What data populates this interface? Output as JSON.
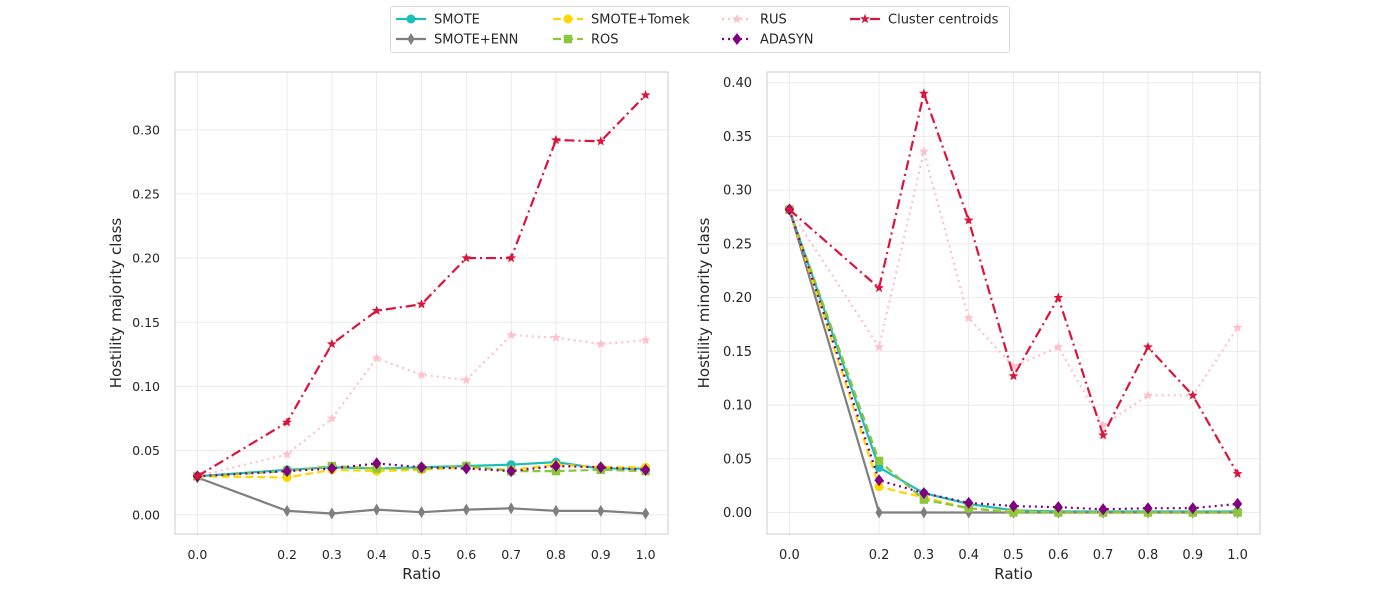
{
  "chart_data": [
    {
      "type": "line",
      "xlabel": "Ratio",
      "ylabel": "Hostility majority class",
      "x": [
        0.0,
        0.2,
        0.3,
        0.4,
        0.5,
        0.6,
        0.7,
        0.8,
        0.9,
        1.0
      ],
      "x_tick_labels": [
        "0.0",
        "0.2",
        "0.3",
        "0.4",
        "0.5",
        "0.6",
        "0.7",
        "0.8",
        "0.9",
        "1.0"
      ],
      "ylim": [
        -0.015,
        0.345
      ],
      "y_ticks": [
        0.0,
        0.05,
        0.1,
        0.15,
        0.2,
        0.25,
        0.3
      ],
      "y_tick_labels": [
        "0.00",
        "0.05",
        "0.10",
        "0.15",
        "0.20",
        "0.25",
        "0.30"
      ],
      "grid": true,
      "series": [
        {
          "name": "SMOTE",
          "values": [
            0.03,
            0.035,
            0.037,
            0.036,
            0.037,
            0.038,
            0.039,
            0.041,
            0.036,
            0.036
          ]
        },
        {
          "name": "SMOTE+ENN",
          "values": [
            0.029,
            0.003,
            0.001,
            0.004,
            0.002,
            0.004,
            0.005,
            0.003,
            0.003,
            0.001
          ]
        },
        {
          "name": "SMOTE+Tomek",
          "values": [
            0.03,
            0.029,
            0.035,
            0.034,
            0.035,
            0.037,
            0.035,
            0.039,
            0.037,
            0.037
          ]
        },
        {
          "name": "ROS",
          "values": [
            0.03,
            0.034,
            0.038,
            0.036,
            0.036,
            0.038,
            0.034,
            0.034,
            0.035,
            0.034
          ]
        },
        {
          "name": "RUS",
          "values": [
            0.03,
            0.047,
            0.075,
            0.122,
            0.109,
            0.105,
            0.14,
            0.138,
            0.133,
            0.136
          ]
        },
        {
          "name": "ADASYN",
          "values": [
            0.03,
            0.034,
            0.036,
            0.04,
            0.037,
            0.036,
            0.034,
            0.038,
            0.037,
            0.035
          ]
        },
        {
          "name": "Cluster centroids",
          "values": [
            0.03,
            0.072,
            0.133,
            0.159,
            0.164,
            0.2,
            0.2,
            0.292,
            0.291,
            0.327
          ]
        }
      ]
    },
    {
      "type": "line",
      "xlabel": "Ratio",
      "ylabel": "Hostility minority class",
      "x": [
        0.0,
        0.2,
        0.3,
        0.4,
        0.5,
        0.6,
        0.7,
        0.8,
        0.9,
        1.0
      ],
      "x_tick_labels": [
        "0.0",
        "0.2",
        "0.3",
        "0.4",
        "0.5",
        "0.6",
        "0.7",
        "0.8",
        "0.9",
        "1.0"
      ],
      "ylim": [
        -0.02,
        0.41
      ],
      "y_ticks": [
        0.0,
        0.05,
        0.1,
        0.15,
        0.2,
        0.25,
        0.3,
        0.35,
        0.4
      ],
      "y_tick_labels": [
        "0.00",
        "0.05",
        "0.10",
        "0.15",
        "0.20",
        "0.25",
        "0.30",
        "0.35",
        "0.40"
      ],
      "grid": true,
      "series": [
        {
          "name": "SMOTE",
          "values": [
            0.282,
            0.042,
            0.018,
            0.008,
            0.002,
            0.001,
            0.001,
            0.001,
            0.001,
            0.001
          ]
        },
        {
          "name": "SMOTE+ENN",
          "values": [
            0.282,
            0.0,
            0.0,
            0.0,
            0.0,
            0.0,
            0.0,
            0.0,
            0.0,
            0.0
          ]
        },
        {
          "name": "SMOTE+Tomek",
          "values": [
            0.282,
            0.024,
            0.014,
            0.004,
            0.001,
            0.0,
            0.0,
            0.0,
            0.0,
            0.0
          ]
        },
        {
          "name": "ROS",
          "values": [
            0.282,
            0.048,
            0.012,
            0.004,
            0.0,
            0.0,
            0.0,
            0.0,
            0.0,
            0.0
          ]
        },
        {
          "name": "RUS",
          "values": [
            0.282,
            0.154,
            0.336,
            0.181,
            0.136,
            0.154,
            0.081,
            0.109,
            0.109,
            0.172
          ]
        },
        {
          "name": "ADASYN",
          "values": [
            0.282,
            0.03,
            0.018,
            0.009,
            0.006,
            0.005,
            0.003,
            0.004,
            0.004,
            0.008
          ]
        },
        {
          "name": "Cluster centroids",
          "values": [
            0.282,
            0.209,
            0.39,
            0.272,
            0.127,
            0.2,
            0.072,
            0.154,
            0.109,
            0.036
          ]
        }
      ]
    }
  ],
  "legend": {
    "placement": "top-center",
    "entries": [
      {
        "label": "SMOTE",
        "color": "#1ABFB8",
        "marker": "circle",
        "dash": "solid"
      },
      {
        "label": "SMOTE+ENN",
        "color": "#7F7F7F",
        "marker": "thin-diamond",
        "dash": "solid"
      },
      {
        "label": "SMOTE+Tomek",
        "color": "#FFD700",
        "marker": "circle",
        "dash": "dashed"
      },
      {
        "label": "ROS",
        "color": "#8CC63F",
        "marker": "square",
        "dash": "dashed"
      },
      {
        "label": "RUS",
        "color": "#FFC0CB",
        "marker": "star",
        "dash": "dotted"
      },
      {
        "label": "ADASYN",
        "color": "#800080",
        "marker": "diamond",
        "dash": "dotted"
      },
      {
        "label": "Cluster centroids",
        "color": "#DC143C",
        "marker": "star",
        "dash": "dashdot"
      }
    ]
  }
}
